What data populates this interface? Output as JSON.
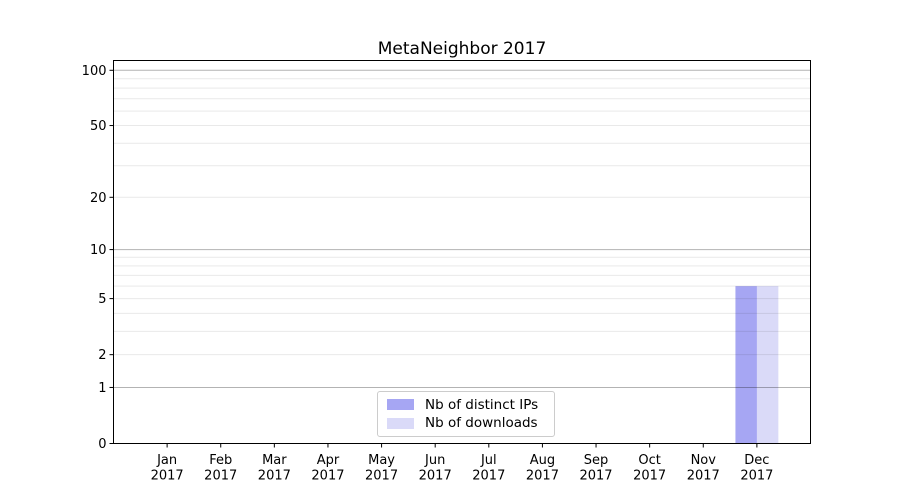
{
  "chart_data": {
    "type": "bar",
    "title": "MetaNeighbor 2017",
    "categories": [
      "Jan 2017",
      "Feb 2017",
      "Mar 2017",
      "Apr 2017",
      "May 2017",
      "Jun 2017",
      "Jul 2017",
      "Aug 2017",
      "Sep 2017",
      "Oct 2017",
      "Nov 2017",
      "Dec 2017"
    ],
    "x_tick_lines": [
      [
        "Jan",
        "2017"
      ],
      [
        "Feb",
        "2017"
      ],
      [
        "Mar",
        "2017"
      ],
      [
        "Apr",
        "2017"
      ],
      [
        "May",
        "2017"
      ],
      [
        "Jun",
        "2017"
      ],
      [
        "Jul",
        "2017"
      ],
      [
        "Aug",
        "2017"
      ],
      [
        "Sep",
        "2017"
      ],
      [
        "Oct",
        "2017"
      ],
      [
        "Nov",
        "2017"
      ],
      [
        "Dec",
        "2017"
      ]
    ],
    "series": [
      {
        "name": "Nb of distinct IPs",
        "color": "#a6a6f3",
        "values": [
          0,
          0,
          0,
          0,
          0,
          0,
          0,
          0,
          0,
          0,
          0,
          6
        ]
      },
      {
        "name": "Nb of downloads",
        "color": "#dadaf8",
        "values": [
          0,
          0,
          0,
          0,
          0,
          0,
          0,
          0,
          0,
          0,
          0,
          6
        ]
      }
    ],
    "xlabel": "",
    "ylabel": "",
    "yscale": "log1p",
    "ylim": [
      0,
      113
    ],
    "y_ticks": [
      0,
      1,
      2,
      5,
      10,
      20,
      50,
      100
    ],
    "y_major_gridlines": [
      1,
      10,
      100
    ],
    "y_minor_gridlines": [
      2,
      3,
      4,
      5,
      6,
      7,
      8,
      9,
      20,
      30,
      40,
      50,
      60,
      70,
      80,
      90
    ],
    "grid": true,
    "legend": {
      "position": "lower center",
      "entries": [
        "Nb of distinct IPs",
        "Nb of downloads"
      ]
    },
    "colors": {
      "background": "#ffffff",
      "axis": "#000000",
      "text": "#000000",
      "grid_major": "#b3b3b3",
      "grid_minor": "#e9e9e9",
      "legend_border": "#cccccc"
    }
  }
}
